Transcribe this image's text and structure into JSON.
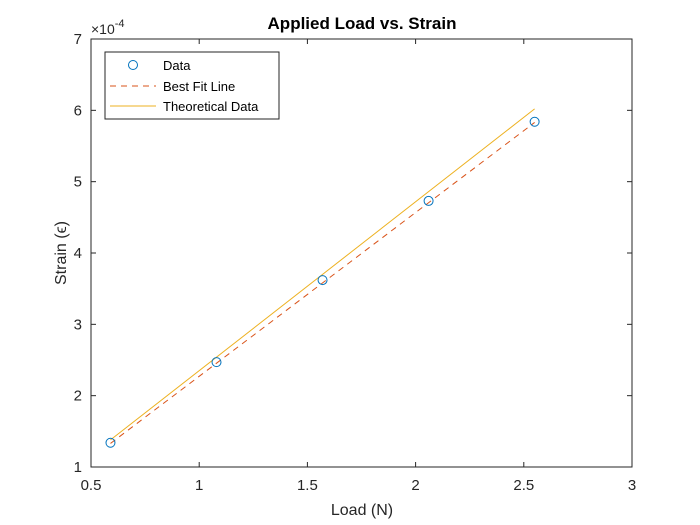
{
  "chart_data": {
    "type": "line",
    "title": "Applied Load vs. Strain",
    "xlabel": "Load (N)",
    "ylabel": "Strain (ϵ)",
    "y_multiplier": "×10",
    "y_exponent": "-4",
    "xlim": [
      0.5,
      3
    ],
    "ylim": [
      1,
      7
    ],
    "xticks": [
      "0.5",
      "1",
      "1.5",
      "2",
      "2.5",
      "3"
    ],
    "yticks": [
      "1",
      "2",
      "3",
      "4",
      "5",
      "6",
      "7"
    ],
    "grid": false,
    "legend_position": "top-left",
    "series": [
      {
        "name": "Data",
        "style": "markers",
        "marker": "circle",
        "color": "#0072BD",
        "x": [
          0.59,
          1.08,
          1.57,
          2.06,
          2.55
        ],
        "y": [
          1.34,
          2.47,
          3.62,
          4.73,
          5.84
        ]
      },
      {
        "name": "Best Fit Line",
        "style": "dashed",
        "color": "#D95319",
        "x": [
          0.59,
          2.55
        ],
        "y": [
          1.33,
          5.83
        ]
      },
      {
        "name": "Theoretical Data",
        "style": "solid",
        "color": "#EDB120",
        "x": [
          0.59,
          2.55
        ],
        "y": [
          1.38,
          6.02
        ]
      }
    ]
  }
}
